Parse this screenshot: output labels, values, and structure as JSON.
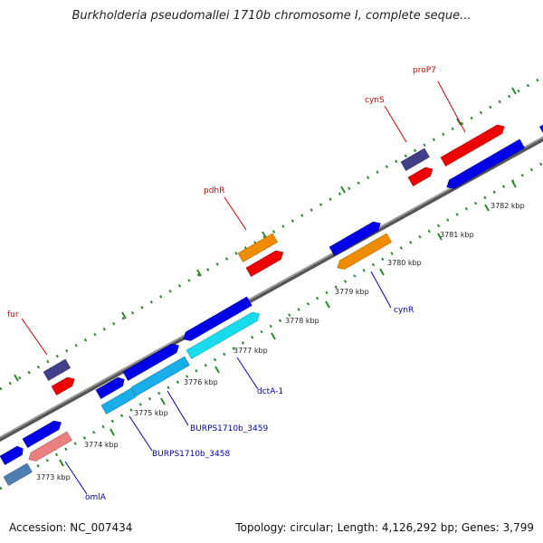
{
  "header": {
    "title": "Burkholderia pseudomallei 1710b chromosome I, complete seque..."
  },
  "footer": {
    "accession": "Accession: NC_007434",
    "summary": "Topology: circular; Length: 4,126,292 bp; Genes: 3,799"
  },
  "colors": {
    "backbone": "#777777",
    "dots": "#2a8a2a",
    "gene_blue": "#0000e6",
    "gene_navy": "#403f88",
    "gene_red": "#ee0000",
    "gene_orange": "#f08c00",
    "gene_cyan": "#18dcee",
    "gene_skyblue": "#19aeea",
    "gene_pink": "#e98080",
    "gene_steel": "#4f7fb0",
    "label_red": "#d00000",
    "label_blue": "#0000b0"
  },
  "scale_labels": [
    "3773 kbp",
    "3774 kbp",
    "3775 kbp",
    "3776 kbp",
    "3777 kbp",
    "3778 kbp",
    "3779 kbp",
    "3780 kbp",
    "3781 kbp",
    "3782 kbp"
  ],
  "gene_labels": {
    "fur": "fur",
    "pdhR": "pdhR",
    "cynS": "cynS",
    "proP7": "proP7",
    "cynR": "cynR",
    "dctA1": "dctA-1",
    "b3459": "BURPS1710b_3459",
    "b3458": "BURPS1710b_3458",
    "omlA": "omlA"
  }
}
